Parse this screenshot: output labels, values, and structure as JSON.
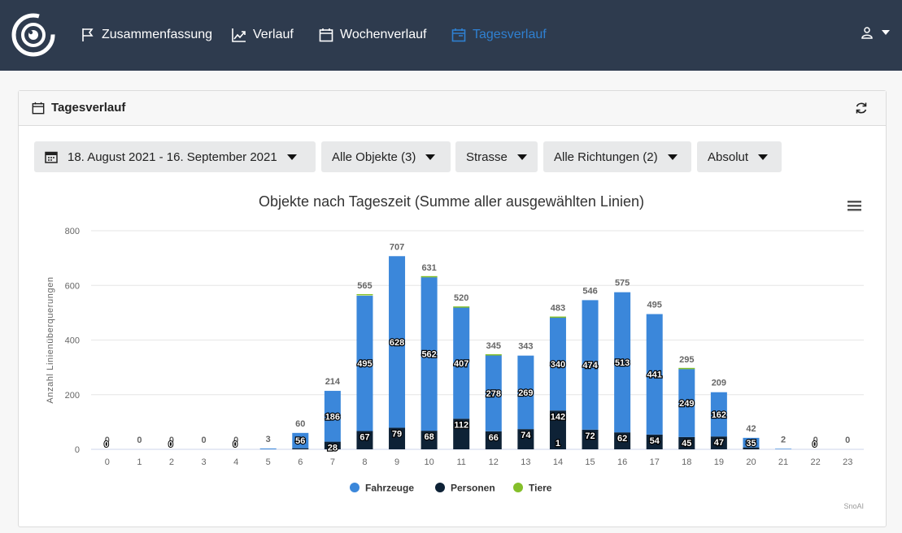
{
  "nav": {
    "items": [
      {
        "label": "Zusammenfassung",
        "icon": "flag-icon"
      },
      {
        "label": "Verlauf",
        "icon": "trend-icon"
      },
      {
        "label": "Wochenverlauf",
        "icon": "calendar-icon"
      },
      {
        "label": "Tagesverlauf",
        "icon": "calendar-range-icon",
        "active": true
      }
    ],
    "user_icon": "user-icon"
  },
  "card": {
    "title": "Tagesverlauf"
  },
  "filters": {
    "date_range": "18. August 2021 - 16. September 2021",
    "objects": "Alle Objekte (3)",
    "type": "Strasse",
    "directions": "Alle Richtungen (2)",
    "mode": "Absolut"
  },
  "colors": {
    "topbar": "#2e3b4e",
    "accent": "#2f80d1",
    "fahrzeuge": "#3b87da",
    "personen": "#0e2236",
    "tiere": "#84bf2a"
  },
  "chart_data": {
    "type": "bar",
    "stacked": true,
    "title": "Objekte nach Tageszeit (Summe aller ausgewählten Linien)",
    "ylabel": "Anzahl Linienüberquerungen",
    "xlabel": "",
    "ylim": [
      0,
      800
    ],
    "yticks": [
      0,
      200,
      400,
      600,
      800
    ],
    "categories": [
      "0",
      "1",
      "2",
      "3",
      "4",
      "5",
      "6",
      "7",
      "8",
      "9",
      "10",
      "11",
      "12",
      "13",
      "14",
      "15",
      "16",
      "17",
      "18",
      "19",
      "20",
      "21",
      "22",
      "23"
    ],
    "series": [
      {
        "name": "Personen",
        "values": [
          0,
          0,
          0,
          0,
          0,
          0,
          4,
          28,
          67,
          79,
          68,
          112,
          66,
          74,
          142,
          72,
          62,
          54,
          45,
          47,
          7,
          0,
          0,
          0
        ]
      },
      {
        "name": "Fahrzeuge",
        "values": [
          0,
          0,
          0,
          0,
          0,
          3,
          56,
          186,
          495,
          628,
          562,
          407,
          278,
          269,
          340,
          474,
          513,
          441,
          249,
          162,
          35,
          2,
          0,
          0
        ]
      },
      {
        "name": "Tiere",
        "values": [
          0,
          0,
          0,
          0,
          0,
          0,
          0,
          0,
          3,
          0,
          1,
          1,
          1,
          0,
          1,
          0,
          0,
          0,
          1,
          0,
          0,
          0,
          0,
          0
        ]
      }
    ],
    "totals": [
      0,
      0,
      0,
      0,
      0,
      3,
      60,
      214,
      565,
      707,
      631,
      520,
      345,
      343,
      483,
      546,
      575,
      495,
      295,
      209,
      42,
      2,
      0,
      0
    ],
    "tiny_labels": {
      "0": "0",
      "2": "0",
      "4": "0",
      "22": "0"
    },
    "extra_labels": [
      {
        "index": 14,
        "text": "1"
      }
    ],
    "legend": [
      "Fahrzeuge",
      "Personen",
      "Tiere"
    ],
    "legend_position": "bottom-center",
    "credits": "SnoAI",
    "grid": true
  }
}
